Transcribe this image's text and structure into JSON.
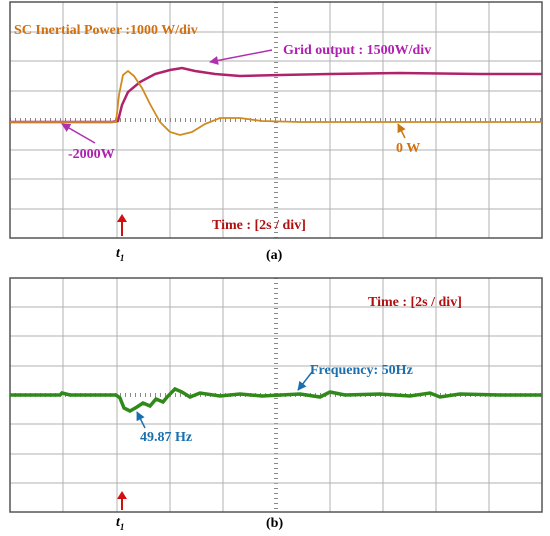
{
  "panel_a": {
    "sc_label": "SC Inertial Power :1000 W/div",
    "grid_label": "Grid output  : 1500W/div",
    "grid_offset": "-2000W",
    "sc_offset": "0 W",
    "time_label": "Time : [2s / div]",
    "marker": {
      "symbol": "t",
      "subscript": "1"
    },
    "caption": "(a)"
  },
  "panel_b": {
    "time_label": "Time : [2s / div]",
    "freq_label": "Frequency: 50Hz",
    "dip_label": "49.87 Hz",
    "marker": {
      "symbol": "t",
      "subscript": "1"
    },
    "caption": "(b)"
  }
}
